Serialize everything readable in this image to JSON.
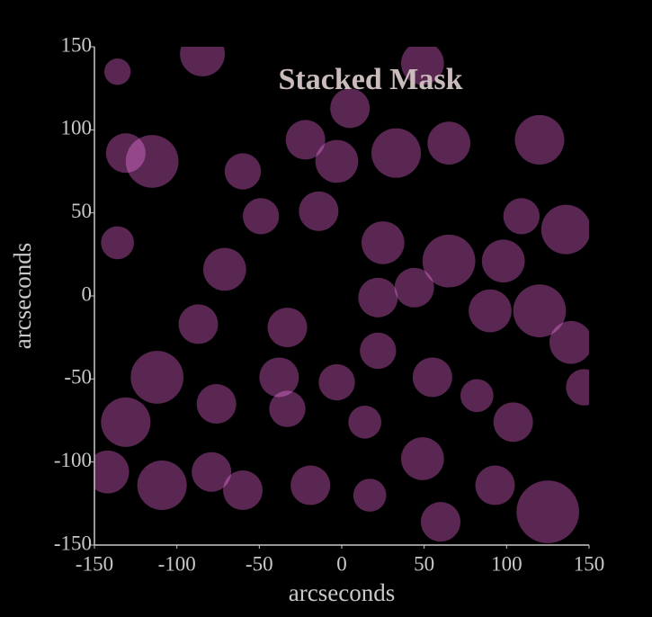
{
  "chart_data": {
    "type": "scatter",
    "title": "Stacked Mask",
    "xlabel": "arcseconds",
    "ylabel": "arcseconds",
    "xlim": [
      -150,
      150
    ],
    "ylim": [
      -150,
      150
    ],
    "xticks": [
      -150,
      -100,
      -50,
      0,
      50,
      100,
      150
    ],
    "yticks": [
      -150,
      -100,
      -50,
      0,
      50,
      100,
      150
    ],
    "color": "#6a2e62",
    "x": [
      -84.5,
      49,
      -131,
      -115,
      -22,
      -3,
      33,
      65,
      120,
      136,
      -14,
      -49,
      -136,
      44,
      -87,
      -33,
      90,
      120,
      139,
      22,
      -38,
      -3,
      55,
      82,
      -131,
      -76,
      -33,
      14,
      104,
      -142,
      -109,
      -79,
      -60,
      -19,
      17,
      60,
      93,
      125,
      65,
      -60,
      109,
      -112,
      49,
      5,
      -136,
      -71,
      25,
      98,
      22,
      147
    ],
    "y": [
      145.7,
      140,
      86,
      81,
      94,
      81,
      86,
      92,
      94,
      40,
      51,
      48,
      32,
      5,
      -17,
      -19,
      -9,
      -9,
      -28,
      -33,
      -49,
      -52,
      -49,
      -60,
      -76,
      -65,
      -68,
      -76,
      -76,
      -106,
      -114,
      -106,
      -117,
      -114,
      -120,
      -136,
      -114,
      -130,
      21,
      75,
      48,
      -49,
      -98,
      113,
      135,
      16,
      32,
      21,
      -1,
      -55
    ],
    "sizes": [
      13.6,
      13,
      12,
      16,
      12,
      13,
      15,
      13,
      15,
      15,
      12,
      11,
      10,
      12,
      12,
      12,
      13,
      16,
      13,
      11,
      12,
      11,
      12,
      10,
      15,
      12,
      11,
      10,
      12,
      13,
      15,
      12,
      12,
      12,
      10,
      12,
      12,
      19,
      16,
      11,
      11,
      16,
      13,
      12,
      8,
      13,
      13,
      13,
      12,
      11
    ]
  }
}
